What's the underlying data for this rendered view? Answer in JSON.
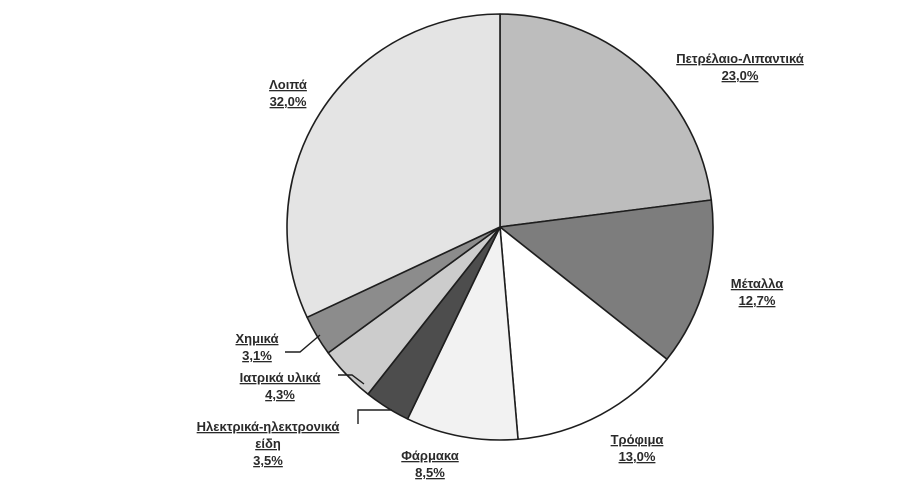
{
  "chart_data": {
    "type": "pie",
    "title": "",
    "decimal_separator": ",",
    "start_angle_deg": 0,
    "direction": "clockwise",
    "slices": [
      {
        "label": "Πετρέλαιο-Λιπαντικά",
        "value": 23.0,
        "display": "23,0%",
        "color": "#bdbdbd"
      },
      {
        "label": "Μέταλλα",
        "value": 12.7,
        "display": "12,7%",
        "color": "#7d7d7d"
      },
      {
        "label": "Τρόφιμα",
        "value": 13.0,
        "display": "13,0%",
        "color": "#ffffff"
      },
      {
        "label": "Φάρμακα",
        "value": 8.5,
        "display": "8,5%",
        "color": "#f2f2f2"
      },
      {
        "label": "Ηλεκτρικά-ηλεκτρονικά είδη",
        "label_lines": [
          "Ηλεκτρικά-ηλεκτρονικά",
          "είδη"
        ],
        "value": 3.5,
        "display": "3,5%",
        "color": "#4d4d4d"
      },
      {
        "label": "Ιατρικά υλικά",
        "value": 4.3,
        "display": "4,3%",
        "color": "#cccccc"
      },
      {
        "label": "Χημικά",
        "value": 3.1,
        "display": "3,1%",
        "color": "#8c8c8c"
      },
      {
        "label": "Λοιπά",
        "value": 32.0,
        "display": "32,0%",
        "color": "#e4e4e4"
      }
    ]
  }
}
